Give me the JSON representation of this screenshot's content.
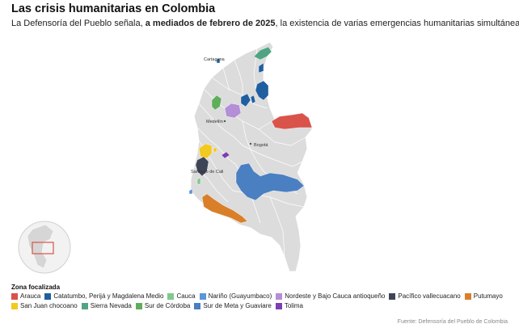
{
  "header": {
    "title": "Las crisis humanitarias en Colombia",
    "subtitle_pre": "La Defensoría del Pueblo señala, ",
    "subtitle_bold": "a mediados de febrero de 2025",
    "subtitle_post": ", la existencia de varias emergencias humanitarias simultáneas"
  },
  "map": {
    "cities": {
      "cartagena": "Cartagena",
      "medellin": "Medellín",
      "bogota": "Bogotá",
      "santiago_de_cali": "Santiago de Cali"
    }
  },
  "legend": {
    "title": "Zona focalizada",
    "items": [
      {
        "label": "Arauca",
        "color": "#d9534a"
      },
      {
        "label": "Catatumbo, Perijá y Magdalena Medio",
        "color": "#1f5fa0"
      },
      {
        "label": "Cauca",
        "color": "#7fc98a"
      },
      {
        "label": "Nariño (Guayumbaco)",
        "color": "#5a96d8"
      },
      {
        "label": "Nordeste y Bajo Cauca antioqueño",
        "color": "#b48ed6"
      },
      {
        "label": "Pacífico vallecuacano",
        "color": "#3e4556"
      },
      {
        "label": "Putumayo",
        "color": "#d97f2a"
      },
      {
        "label": "San Juan chocoano",
        "color": "#f2c91f"
      },
      {
        "label": "Sierra Nevada",
        "color": "#4fa583"
      },
      {
        "label": "Sur de Córdoba",
        "color": "#5eae5c"
      },
      {
        "label": "Sur de Meta y Guaviare",
        "color": "#4a7fc2"
      },
      {
        "label": "Tolima",
        "color": "#7b3fb3"
      }
    ]
  },
  "source": "Fuente: Defensoría del Pueblo de Colombia"
}
